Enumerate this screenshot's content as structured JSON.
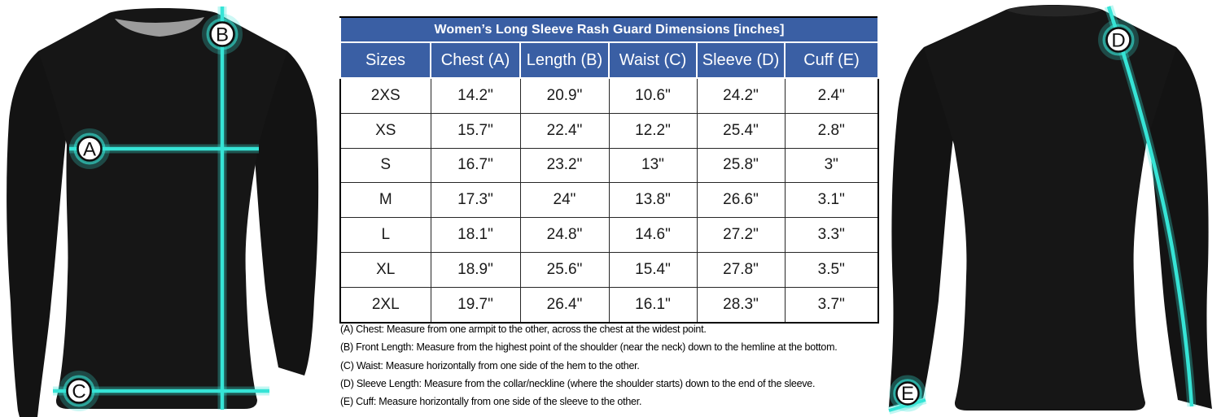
{
  "table": {
    "title": "Women’s Long Sleeve Rash Guard Dimensions [inches]",
    "headers": [
      "Sizes",
      "Chest (A)",
      "Length (B)",
      "Waist (C)",
      "Sleeve (D)",
      "Cuff (E)"
    ],
    "rows": [
      [
        "2XS",
        "14.2\"",
        "20.9\"",
        "10.6\"",
        "24.2\"",
        "2.4\""
      ],
      [
        "XS",
        "15.7\"",
        "22.4\"",
        "12.2\"",
        "25.4\"",
        "2.8\""
      ],
      [
        "S",
        "16.7\"",
        "23.2\"",
        "13\"",
        "25.8\"",
        "3\""
      ],
      [
        "M",
        "17.3\"",
        "24\"",
        "13.8\"",
        "26.6\"",
        "3.1\""
      ],
      [
        "L",
        "18.1\"",
        "24.8\"",
        "14.6\"",
        "27.2\"",
        "3.3\""
      ],
      [
        "XL",
        "18.9\"",
        "25.6\"",
        "15.4\"",
        "27.8\"",
        "3.5\""
      ],
      [
        "2XL",
        "19.7\"",
        "26.4\"",
        "16.1\"",
        "28.3\"",
        "3.7\""
      ]
    ]
  },
  "notes": [
    "(A) Chest: Measure from one armpit to the other, across the chest at the widest point.",
    "(B) Front Length: Measure from the highest point of the shoulder (near the neck) down to the hemline at the bottom.",
    "(C) Waist: Measure horizontally from one side of the hem to the other.",
    "(D) Sleeve Length: Measure from the collar/neckline (where the shoulder starts) down to the end of the sleeve.",
    "(E) Cuff: Measure horizontally from one side of the sleeve to the other."
  ],
  "front_view": {
    "markers": [
      {
        "id": "A",
        "measure": "chest"
      },
      {
        "id": "B",
        "measure": "length"
      },
      {
        "id": "C",
        "measure": "waist"
      }
    ]
  },
  "back_view": {
    "markers": [
      {
        "id": "D",
        "measure": "sleeve"
      },
      {
        "id": "E",
        "measure": "cuff"
      }
    ]
  },
  "colors": {
    "accent_cyan": "#36E4D6",
    "table_header_blue": "#3A5FA4",
    "shirt_black": "#141414",
    "collar_gray": "#9C9C9C"
  },
  "chart_data": {
    "type": "table",
    "title": "Women’s Long Sleeve Rash Guard Dimensions [inches]",
    "columns": [
      "Sizes",
      "Chest (A)",
      "Length (B)",
      "Waist (C)",
      "Sleeve (D)",
      "Cuff (E)"
    ],
    "rows": [
      [
        "2XS",
        14.2,
        20.9,
        10.6,
        24.2,
        2.4
      ],
      [
        "XS",
        15.7,
        22.4,
        12.2,
        25.4,
        2.8
      ],
      [
        "S",
        16.7,
        23.2,
        13,
        25.8,
        3
      ],
      [
        "M",
        17.3,
        24,
        13.8,
        26.6,
        3.1
      ],
      [
        "L",
        18.1,
        24.8,
        14.6,
        27.2,
        3.3
      ],
      [
        "XL",
        18.9,
        25.6,
        15.4,
        27.8,
        3.5
      ],
      [
        "2XL",
        19.7,
        26.4,
        16.1,
        28.3,
        3.7
      ]
    ]
  }
}
